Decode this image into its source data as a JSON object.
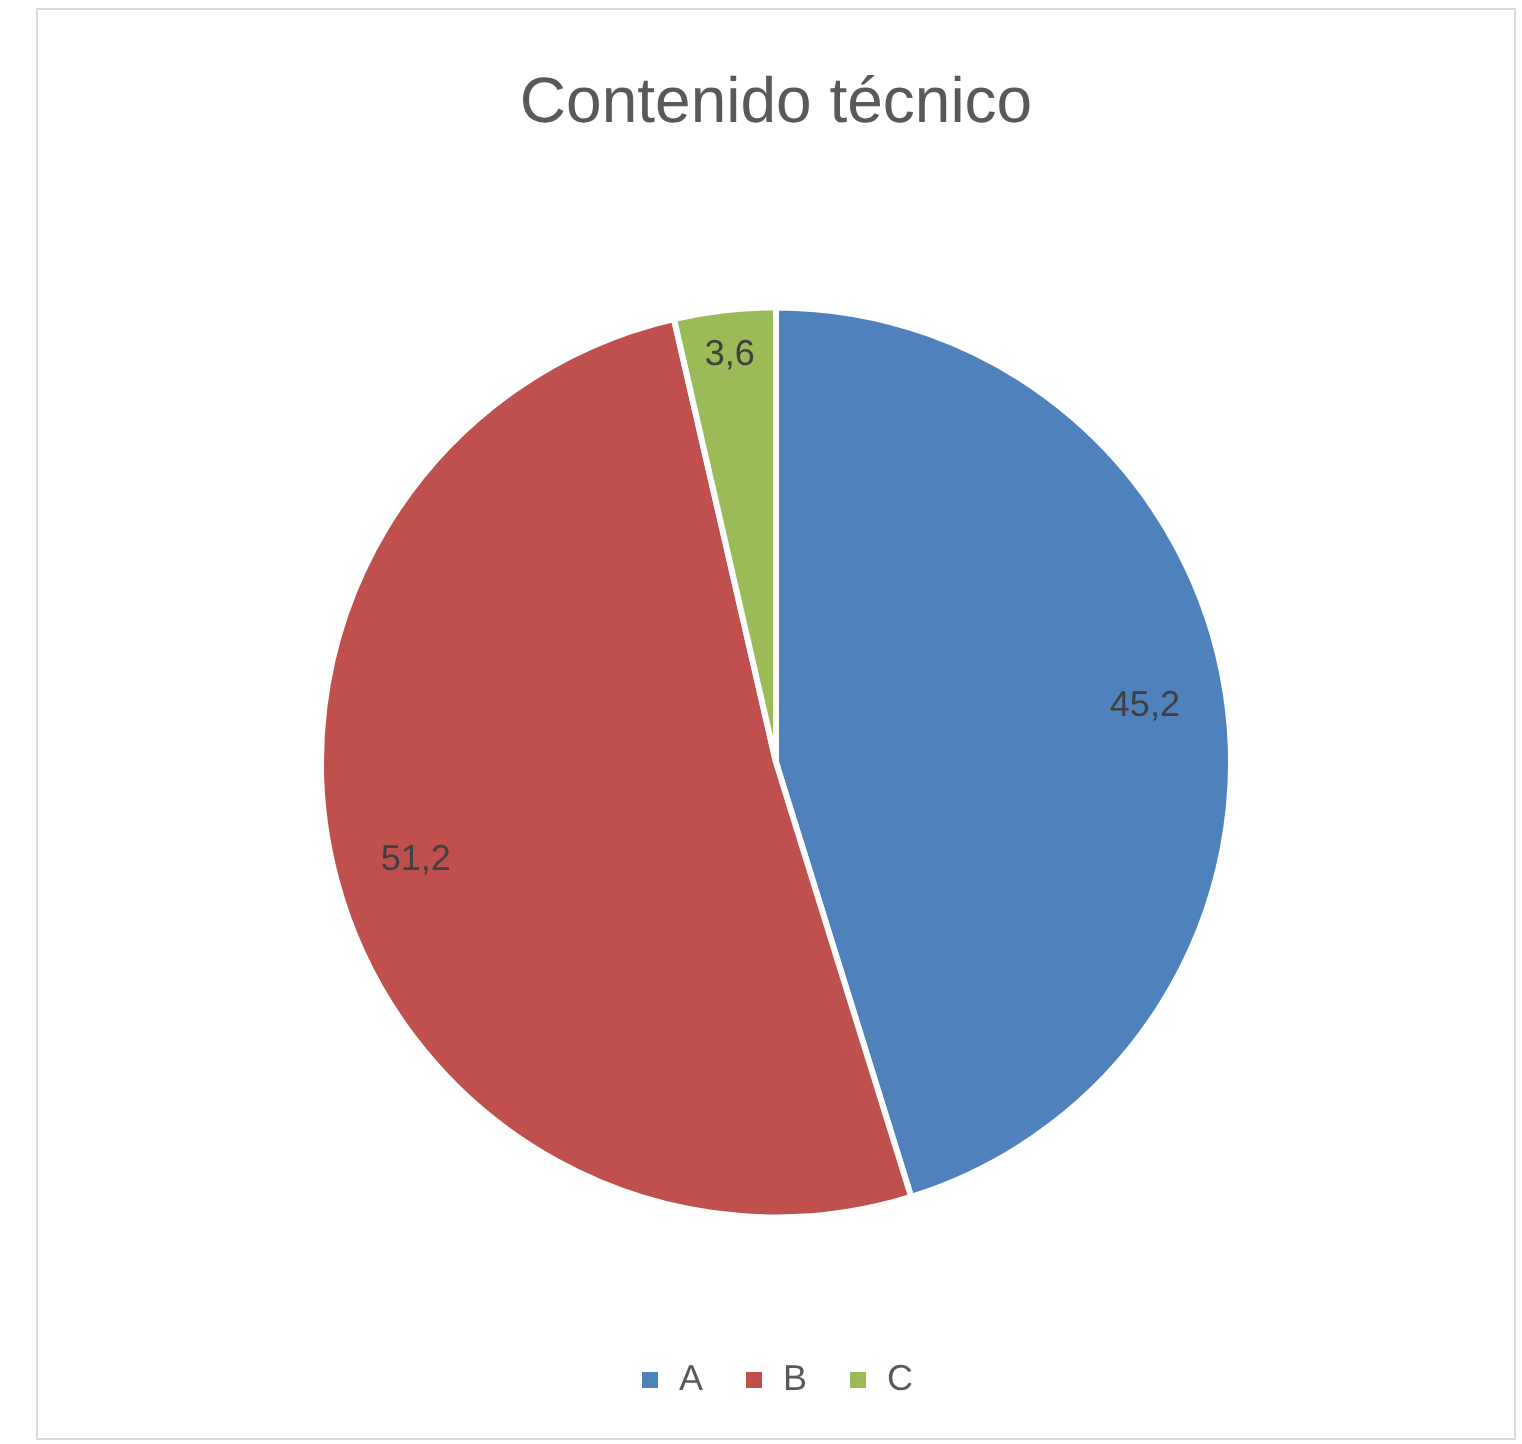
{
  "chart_data": {
    "type": "pie",
    "title": "Contenido técnico",
    "categories": [
      "A",
      "B",
      "C"
    ],
    "values": [
      45.2,
      51.2,
      3.6
    ],
    "colors": [
      "#4f81bd",
      "#c0504d",
      "#9bbb59"
    ],
    "value_labels": [
      "45,2",
      "51,2",
      "3,6"
    ],
    "legend": "bottom"
  }
}
